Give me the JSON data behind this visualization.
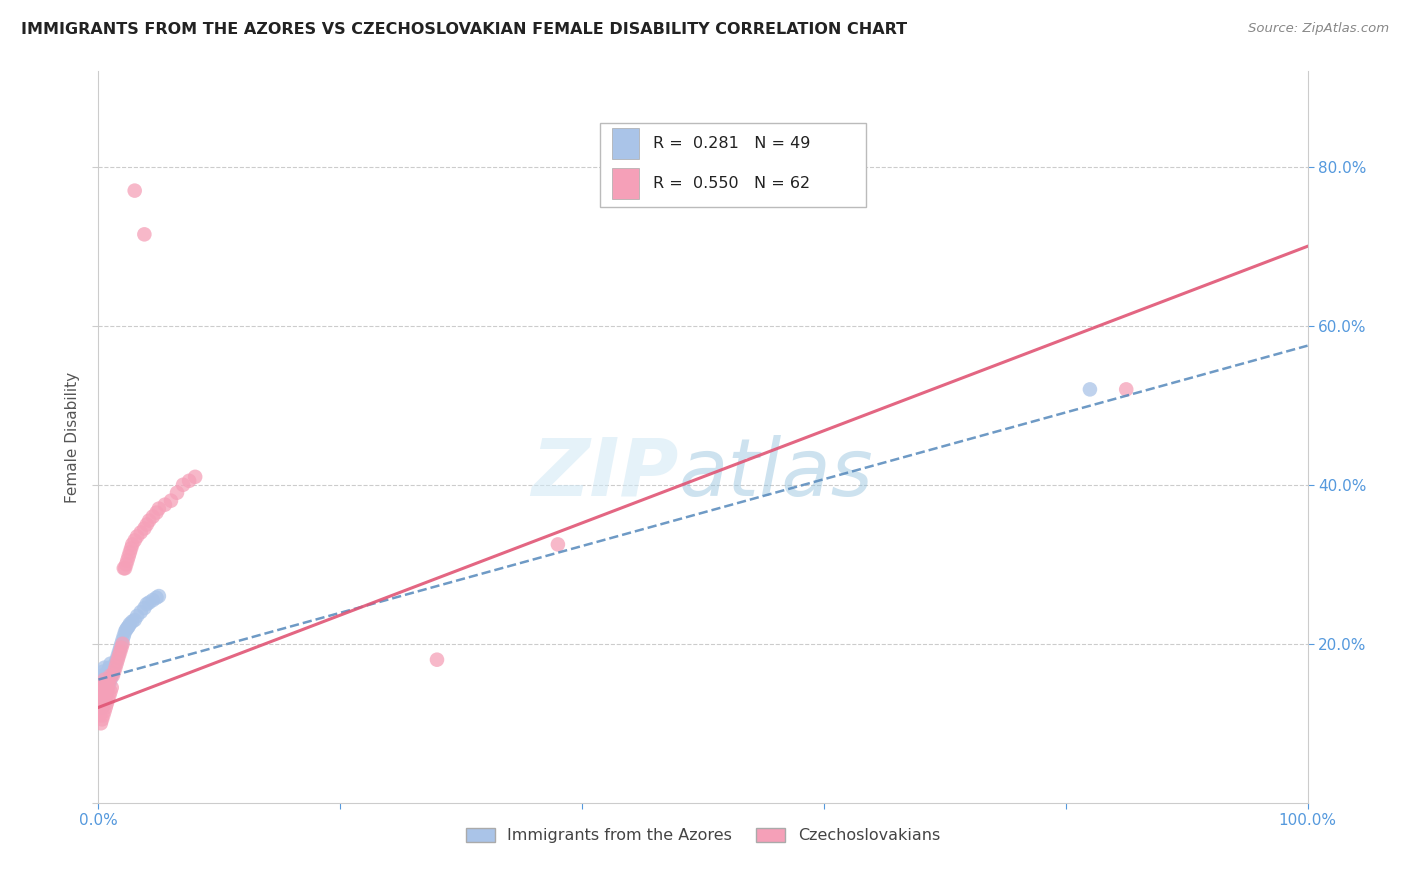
{
  "title": "IMMIGRANTS FROM THE AZORES VS CZECHOSLOVAKIAN FEMALE DISABILITY CORRELATION CHART",
  "source": "Source: ZipAtlas.com",
  "ylabel": "Female Disability",
  "xlim": [
    0.0,
    1.0
  ],
  "ylim": [
    0.0,
    0.92
  ],
  "azores_color": "#aac4e8",
  "czech_color": "#f5a0b8",
  "azores_line_color": "#5588bb",
  "czech_line_color": "#e05575",
  "legend_azores_r": "0.281",
  "legend_azores_n": "49",
  "legend_czech_r": "0.550",
  "legend_czech_n": "62",
  "background_color": "#ffffff",
  "grid_color": "#cccccc",
  "tick_color": "#5599dd",
  "azores_x": [
    0.001,
    0.002,
    0.002,
    0.003,
    0.003,
    0.003,
    0.004,
    0.004,
    0.004,
    0.005,
    0.005,
    0.005,
    0.006,
    0.006,
    0.007,
    0.007,
    0.008,
    0.008,
    0.009,
    0.009,
    0.01,
    0.01,
    0.011,
    0.012,
    0.013,
    0.014,
    0.015,
    0.016,
    0.017,
    0.018,
    0.019,
    0.02,
    0.021,
    0.022,
    0.023,
    0.024,
    0.025,
    0.026,
    0.028,
    0.03,
    0.032,
    0.035,
    0.038,
    0.04,
    0.042,
    0.045,
    0.048,
    0.05,
    0.82
  ],
  "azores_y": [
    0.145,
    0.13,
    0.155,
    0.12,
    0.14,
    0.16,
    0.125,
    0.145,
    0.165,
    0.13,
    0.15,
    0.17,
    0.135,
    0.155,
    0.14,
    0.16,
    0.145,
    0.165,
    0.15,
    0.17,
    0.155,
    0.175,
    0.16,
    0.165,
    0.17,
    0.175,
    0.18,
    0.185,
    0.19,
    0.195,
    0.2,
    0.205,
    0.21,
    0.215,
    0.218,
    0.22,
    0.222,
    0.225,
    0.228,
    0.23,
    0.235,
    0.24,
    0.245,
    0.25,
    0.252,
    0.255,
    0.258,
    0.26,
    0.52
  ],
  "czech_x": [
    0.001,
    0.001,
    0.002,
    0.002,
    0.002,
    0.003,
    0.003,
    0.003,
    0.004,
    0.004,
    0.004,
    0.005,
    0.005,
    0.005,
    0.006,
    0.006,
    0.007,
    0.007,
    0.008,
    0.008,
    0.009,
    0.009,
    0.01,
    0.01,
    0.011,
    0.012,
    0.013,
    0.014,
    0.015,
    0.016,
    0.017,
    0.018,
    0.019,
    0.02,
    0.021,
    0.022,
    0.023,
    0.024,
    0.025,
    0.026,
    0.027,
    0.028,
    0.03,
    0.032,
    0.035,
    0.038,
    0.04,
    0.042,
    0.045,
    0.048,
    0.05,
    0.055,
    0.06,
    0.065,
    0.07,
    0.075,
    0.08,
    0.28,
    0.38,
    0.85,
    0.03,
    0.038
  ],
  "czech_y": [
    0.11,
    0.13,
    0.1,
    0.12,
    0.14,
    0.105,
    0.125,
    0.145,
    0.11,
    0.13,
    0.15,
    0.115,
    0.135,
    0.155,
    0.12,
    0.14,
    0.125,
    0.145,
    0.13,
    0.15,
    0.135,
    0.155,
    0.14,
    0.16,
    0.145,
    0.16,
    0.165,
    0.17,
    0.175,
    0.18,
    0.185,
    0.19,
    0.195,
    0.2,
    0.295,
    0.295,
    0.3,
    0.305,
    0.31,
    0.315,
    0.32,
    0.325,
    0.33,
    0.335,
    0.34,
    0.345,
    0.35,
    0.355,
    0.36,
    0.365,
    0.37,
    0.375,
    0.38,
    0.39,
    0.4,
    0.405,
    0.41,
    0.18,
    0.325,
    0.52,
    0.77,
    0.715
  ]
}
